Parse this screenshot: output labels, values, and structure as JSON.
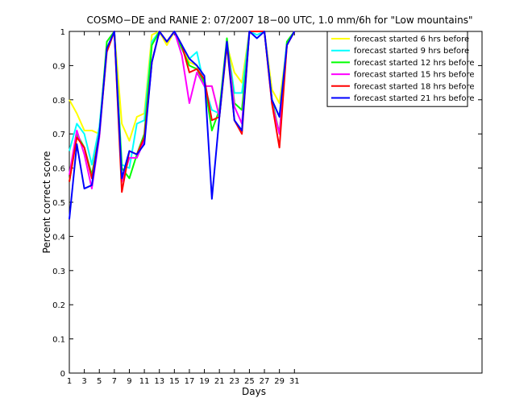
{
  "chart_data": {
    "type": "line",
    "title": "COSMO−DE and RANIE 2: 07/2007 18−00 UTC, 1.0 mm/6h for \"Low mountains\"",
    "xlabel": "Days",
    "ylabel": "Percent correct score",
    "xlim": [
      1,
      56
    ],
    "ylim": [
      0,
      1
    ],
    "x_ticks": [
      1,
      3,
      5,
      7,
      9,
      11,
      13,
      15,
      17,
      19,
      21,
      23,
      25,
      27,
      29,
      31
    ],
    "y_ticks": [
      0,
      0.1,
      0.2,
      0.3,
      0.4,
      0.5,
      0.6,
      0.7,
      0.8,
      0.9,
      1
    ],
    "y_tick_labels": [
      "0",
      "0.1",
      "0.2",
      "0.3",
      "0.4",
      "0.5",
      "0.6",
      "0.7",
      "0.8",
      "0.9",
      "1"
    ],
    "legend_position": "top-right",
    "grid": false,
    "x": [
      1,
      2,
      3,
      4,
      5,
      6,
      7,
      8,
      9,
      10,
      11,
      12,
      13,
      14,
      15,
      16,
      17,
      18,
      19,
      20,
      21,
      22,
      23,
      24,
      25,
      26,
      27,
      28,
      29,
      30,
      31
    ],
    "series": [
      {
        "name": "forecast started 6 hrs before",
        "color": "#ffff00",
        "values": [
          0.8,
          0.76,
          0.71,
          0.71,
          0.7,
          0.95,
          1.0,
          0.73,
          0.68,
          0.75,
          0.76,
          0.99,
          1.0,
          0.96,
          1.0,
          0.96,
          0.91,
          0.9,
          0.84,
          0.84,
          0.75,
          0.96,
          0.88,
          0.85,
          1.0,
          1.0,
          1.0,
          0.83,
          0.79,
          0.96,
          1.0
        ]
      },
      {
        "name": "forecast started 9 hrs before",
        "color": "#00ffff",
        "values": [
          0.65,
          0.73,
          0.7,
          0.61,
          0.72,
          0.95,
          1.0,
          0.61,
          0.6,
          0.73,
          0.74,
          0.97,
          1.0,
          0.97,
          1.0,
          0.96,
          0.92,
          0.94,
          0.84,
          0.77,
          0.76,
          0.97,
          0.82,
          0.82,
          1.0,
          0.99,
          1.0,
          0.8,
          0.75,
          0.97,
          1.0
        ]
      },
      {
        "name": "forecast started 12 hrs before",
        "color": "#00ff00",
        "values": [
          0.56,
          0.7,
          0.66,
          0.58,
          0.7,
          0.97,
          1.0,
          0.6,
          0.57,
          0.64,
          0.7,
          0.96,
          1.0,
          0.97,
          1.0,
          0.95,
          0.9,
          0.89,
          0.85,
          0.71,
          0.77,
          0.98,
          0.79,
          0.77,
          1.0,
          1.0,
          1.0,
          0.8,
          0.7,
          0.97,
          1.0
        ]
      },
      {
        "name": "forecast started 15 hrs before",
        "color": "#ff00ff",
        "values": [
          0.58,
          0.71,
          0.64,
          0.54,
          0.69,
          0.95,
          1.0,
          0.56,
          0.63,
          0.63,
          0.68,
          0.91,
          1.0,
          0.97,
          1.0,
          0.93,
          0.79,
          0.88,
          0.84,
          0.84,
          0.75,
          0.97,
          0.78,
          0.73,
          1.0,
          1.0,
          1.0,
          0.79,
          0.7,
          0.96,
          1.0
        ]
      },
      {
        "name": "forecast started 18 hrs before",
        "color": "#ff0000",
        "values": [
          0.56,
          0.69,
          0.66,
          0.57,
          0.7,
          0.94,
          1.0,
          0.53,
          0.65,
          0.64,
          0.69,
          0.91,
          1.0,
          0.97,
          1.0,
          0.96,
          0.88,
          0.89,
          0.86,
          0.74,
          0.75,
          0.96,
          0.74,
          0.7,
          1.0,
          1.0,
          1.0,
          0.79,
          0.66,
          0.96,
          1.0
        ]
      },
      {
        "name": "forecast started 21 hrs before",
        "color": "#0000ff",
        "values": [
          0.45,
          0.67,
          0.54,
          0.55,
          0.7,
          0.95,
          1.0,
          0.57,
          0.65,
          0.64,
          0.67,
          0.91,
          1.0,
          0.97,
          1.0,
          0.96,
          0.92,
          0.9,
          0.87,
          0.51,
          0.75,
          0.97,
          0.74,
          0.71,
          1.0,
          0.98,
          1.0,
          0.8,
          0.75,
          0.96,
          1.0
        ]
      }
    ]
  }
}
